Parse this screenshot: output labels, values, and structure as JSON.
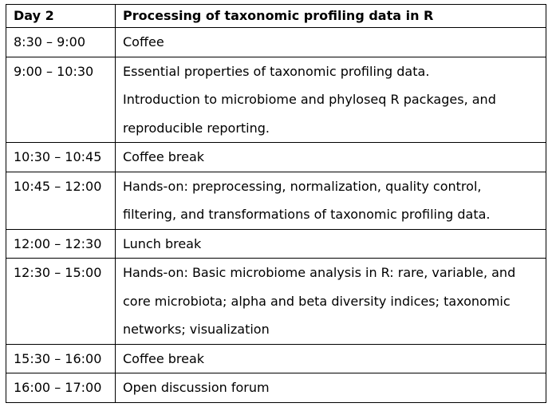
{
  "header": {
    "day": "Day 2",
    "title": "Processing of taxonomic profiling data in R"
  },
  "rows": [
    {
      "time": "8:30 – 9:00",
      "lines": [
        "Coffee"
      ]
    },
    {
      "time": "9:00 – 10:30",
      "lines": [
        "Essential properties of taxonomic profiling data.",
        "Introduction to microbiome and phyloseq R packages, and",
        "reproducible reporting."
      ]
    },
    {
      "time": "10:30 – 10:45",
      "lines": [
        "Coffee break"
      ]
    },
    {
      "time": "10:45 – 12:00",
      "lines": [
        "Hands-on: preprocessing, normalization, quality control,",
        "filtering, and transformations of taxonomic profiling data."
      ]
    },
    {
      "time": "12:00 – 12:30",
      "lines": [
        "Lunch break"
      ]
    },
    {
      "time": "12:30 – 15:00",
      "lines": [
        "Hands-on: Basic microbiome analysis in R: rare, variable, and",
        "core microbiota; alpha and beta diversity indices; taxonomic",
        "networks; visualization"
      ]
    },
    {
      "time": "15:30 – 16:00",
      "lines": [
        "Coffee break"
      ]
    },
    {
      "time": "16:00 – 17:00",
      "lines": [
        "Open discussion forum"
      ]
    }
  ]
}
